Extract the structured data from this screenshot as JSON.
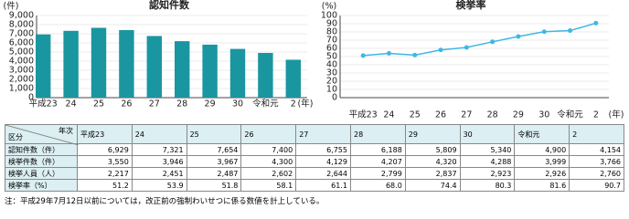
{
  "chart_data": [
    {
      "type": "bar",
      "title": "認知件数",
      "y_label": "(件)",
      "x_label": "(年)",
      "categories": [
        "平成23",
        "24",
        "25",
        "26",
        "27",
        "28",
        "29",
        "30",
        "令和元",
        "2"
      ],
      "values": [
        6929,
        7321,
        7654,
        7400,
        6755,
        6188,
        5809,
        5340,
        4900,
        4154
      ],
      "color": "#1a96a1",
      "ylim": [
        0,
        9000
      ],
      "yticks": [
        0,
        {
          "value": 1000,
          "label": "1,000"
        },
        {
          "value": 2000,
          "label": "2,000"
        },
        {
          "value": 3000,
          "label": "3,000"
        },
        {
          "value": 4000,
          "label": "4,000"
        },
        {
          "value": 5000,
          "label": "5,000"
        },
        {
          "value": 6000,
          "label": "6,000"
        },
        {
          "value": 7000,
          "label": "7,000"
        },
        {
          "value": 8000,
          "label": "8,000"
        },
        {
          "value": 9000,
          "label": "9,000"
        }
      ],
      "grid": true
    },
    {
      "type": "line",
      "title": "検挙率",
      "y_label": "(%)",
      "x_label": "(年)",
      "categories": [
        "平成23",
        "24",
        "25",
        "26",
        "27",
        "28",
        "29",
        "30",
        "令和元",
        "2"
      ],
      "values": [
        51.2,
        53.9,
        51.8,
        58.1,
        61.1,
        68.0,
        74.4,
        80.3,
        81.6,
        90.7
      ],
      "color": "#3fb7e4",
      "ylim": [
        0,
        100
      ],
      "yticks": [
        0,
        10,
        20,
        30,
        40,
        50,
        60,
        70,
        80,
        90,
        100
      ],
      "grid": true
    }
  ],
  "table": {
    "corner": [
      "年次",
      "区分"
    ],
    "columns": [
      "平成23",
      "24",
      "25",
      "26",
      "27",
      "28",
      "29",
      "30",
      "令和元",
      "2"
    ],
    "rows": [
      {
        "label": "認知件数（件）",
        "cells": [
          "6,929",
          "7,321",
          "7,654",
          "7,400",
          "6,755",
          "6,188",
          "5,809",
          "5,340",
          "4,900",
          "4,154"
        ]
      },
      {
        "label": "検挙件数（件）",
        "cells": [
          "3,550",
          "3,946",
          "3,967",
          "4,300",
          "4,129",
          "4,207",
          "4,320",
          "4,288",
          "3,999",
          "3,766"
        ]
      },
      {
        "label": "検挙人員（人）",
        "cells": [
          "2,217",
          "2,451",
          "2,487",
          "2,602",
          "2,644",
          "2,799",
          "2,837",
          "2,923",
          "2,926",
          "2,760"
        ]
      },
      {
        "label": "検挙率（%）",
        "cells": [
          "51.2",
          "53.9",
          "51.8",
          "58.1",
          "61.1",
          "68.0",
          "74.4",
          "80.3",
          "81.6",
          "90.7"
        ]
      }
    ]
  },
  "note": "注：平成29年7月12日以前については，改正前の強制わいせつに係る数値を計上している。"
}
